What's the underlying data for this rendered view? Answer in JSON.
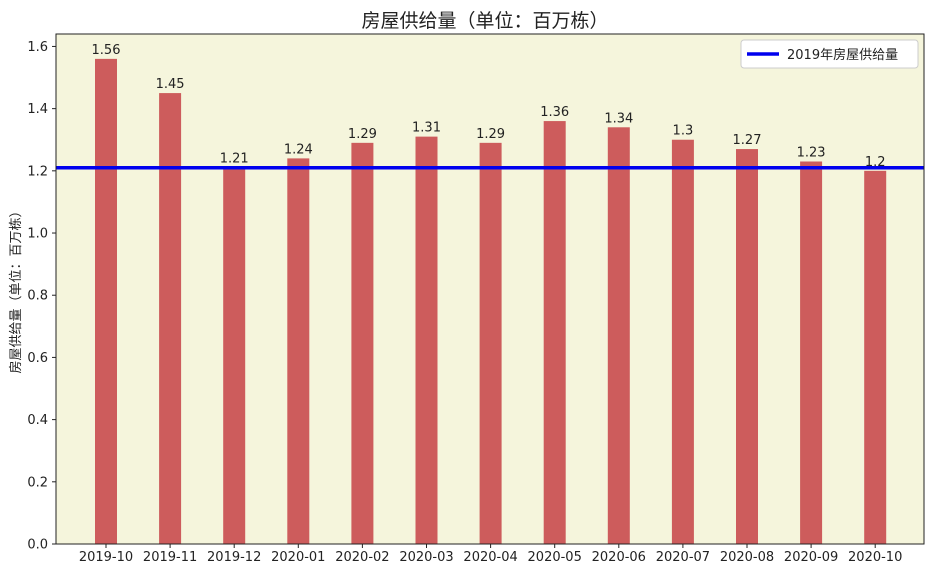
{
  "chart_data": {
    "type": "bar",
    "title": "房屋供给量（单位：百万栋）",
    "xlabel": "",
    "ylabel": "房屋供给量（单位：百万栋）",
    "categories": [
      "2019-10",
      "2019-11",
      "2019-12",
      "2020-01",
      "2020-02",
      "2020-03",
      "2020-04",
      "2020-05",
      "2020-06",
      "2020-07",
      "2020-08",
      "2020-09",
      "2020-10"
    ],
    "values": [
      1.56,
      1.45,
      1.21,
      1.24,
      1.29,
      1.31,
      1.29,
      1.36,
      1.34,
      1.3,
      1.27,
      1.23,
      1.2
    ],
    "data_labels": [
      "1.56",
      "1.45",
      "1.21",
      "1.24",
      "1.29",
      "1.31",
      "1.29",
      "1.36",
      "1.34",
      "1.3",
      "1.27",
      "1.23",
      "1.2"
    ],
    "ylim": [
      0,
      1.64
    ],
    "yticks": [
      "0.0",
      "0.2",
      "0.4",
      "0.6",
      "0.8",
      "1.0",
      "1.2",
      "1.4",
      "1.6"
    ],
    "ytick_values": [
      0,
      0.2,
      0.4,
      0.6,
      0.8,
      1.0,
      1.2,
      1.4,
      1.6
    ],
    "reference_line": {
      "name": "2019年房屋供给量",
      "value": 1.21
    },
    "legend_position": "top-right",
    "grid": false,
    "colors": {
      "bar": "#cd5c5c",
      "reference_line": "#0000ee",
      "plot_background": "#f5f5dc"
    }
  }
}
